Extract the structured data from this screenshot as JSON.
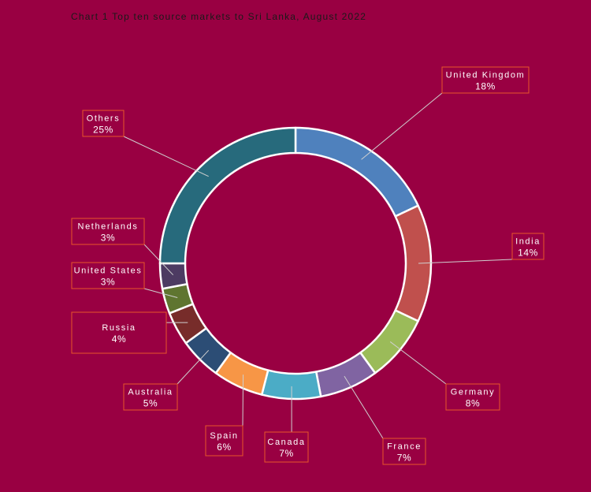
{
  "chart_data": {
    "type": "pie",
    "variant": "donut",
    "title": "Chart 1 Top ten source markets to Sri Lanka, August 2022",
    "categories": [
      "United Kingdom",
      "India",
      "Germany",
      "France",
      "Canada",
      "Spain",
      "Australia",
      "Russia",
      "United States",
      "Netherlands",
      "Others"
    ],
    "values": [
      18,
      14,
      8,
      7,
      7,
      6,
      5,
      4,
      3,
      3,
      25
    ],
    "value_labels": [
      "18%",
      "14%",
      "8%",
      "7%",
      "7%",
      "6%",
      "5%",
      "4%",
      "3%",
      "3%",
      "25%"
    ],
    "colors": [
      "#4f81bd",
      "#c0504d",
      "#9bbb59",
      "#8064a2",
      "#4bacc6",
      "#f79646",
      "#2c4d75",
      "#772c2a",
      "#5f7530",
      "#4d3b62",
      "#276a7c"
    ],
    "legend": "none"
  }
}
